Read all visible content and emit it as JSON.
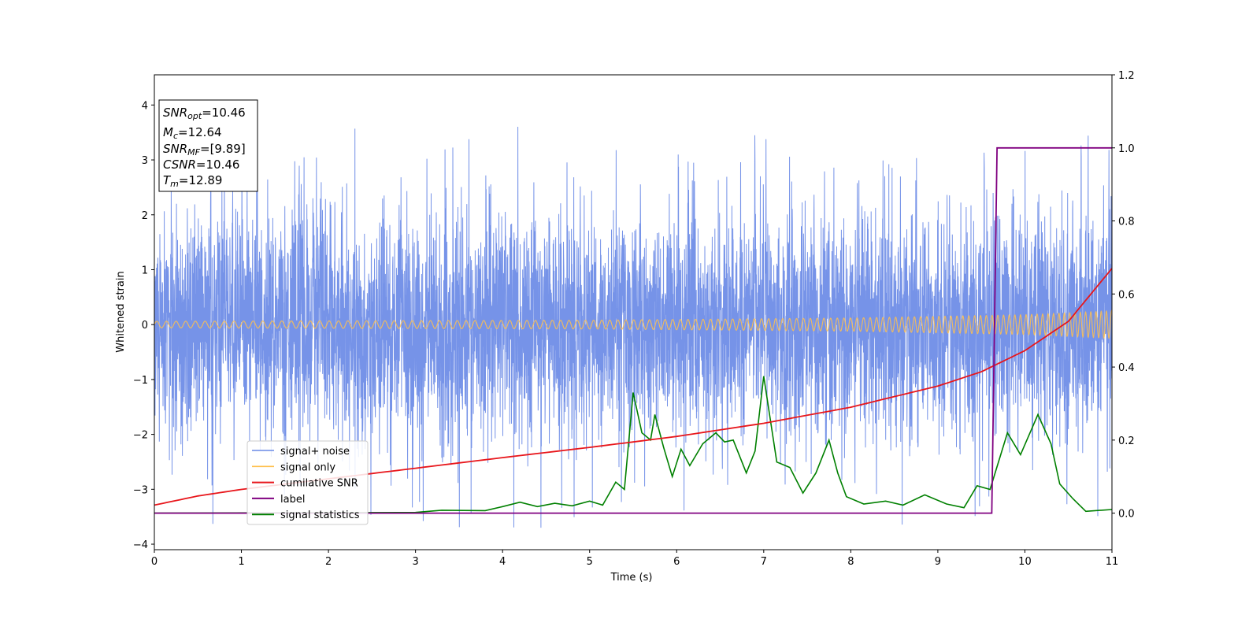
{
  "chart_data": {
    "type": "line",
    "xlabel": "Time (s)",
    "ylabel_left": "Whitened strain",
    "xlim": [
      0,
      11
    ],
    "ylim_left": [
      -4.1,
      4.55
    ],
    "ylim_right": [
      -0.1,
      1.2
    ],
    "x_ticks": [
      "0",
      "1",
      "2",
      "3",
      "4",
      "5",
      "6",
      "7",
      "8",
      "9",
      "10",
      "11"
    ],
    "y_ticks_left": [
      "−4",
      "−3",
      "−2",
      "−1",
      "0",
      "1",
      "2",
      "3",
      "4"
    ],
    "y_ticks_right": [
      "0.0",
      "0.2",
      "0.4",
      "0.6",
      "0.8",
      "1.0",
      "1.2"
    ],
    "grid": false,
    "legend_position": "lower-left",
    "annotation_box": {
      "lines": [
        {
          "symbol": "SNR",
          "sub": "opt",
          "value": "=10.46"
        },
        {
          "symbol": "M",
          "sub": "c",
          "value": "=12.64"
        },
        {
          "symbol": "SNR",
          "sub": "MF",
          "value": "=[9.89]"
        },
        {
          "symbol": "CSNR",
          "sub": "",
          "value": "=10.46"
        },
        {
          "symbol": "T",
          "sub": "m",
          "value": "=12.89"
        }
      ]
    },
    "series": [
      {
        "name": "signal+ noise",
        "axis": "left",
        "color": "#6a8ae6",
        "note": "dense whitened noise, approx amplitude ±1.3 with spikes to ±3.8",
        "envelope": {
          "typical": 1.3,
          "peak": 3.85,
          "min_peak": -3.7
        }
      },
      {
        "name": "signal only",
        "axis": "left",
        "color": "#ffc04d",
        "note": "chirp oscillation whose amplitude grows with time",
        "amplitude": [
          {
            "x": 0,
            "y": 0.06
          },
          {
            "x": 5,
            "y": 0.08
          },
          {
            "x": 8,
            "y": 0.12
          },
          {
            "x": 10,
            "y": 0.18
          },
          {
            "x": 11,
            "y": 0.25
          }
        ]
      },
      {
        "name": "cumilative SNR",
        "axis": "right",
        "color": "#e8161b",
        "points": [
          {
            "x": 0,
            "y": 0.022
          },
          {
            "x": 0.5,
            "y": 0.047
          },
          {
            "x": 1,
            "y": 0.065
          },
          {
            "x": 2,
            "y": 0.094
          },
          {
            "x": 3,
            "y": 0.123
          },
          {
            "x": 4,
            "y": 0.152
          },
          {
            "x": 5,
            "y": 0.18
          },
          {
            "x": 6,
            "y": 0.21
          },
          {
            "x": 7,
            "y": 0.246
          },
          {
            "x": 8,
            "y": 0.29
          },
          {
            "x": 9,
            "y": 0.348
          },
          {
            "x": 9.5,
            "y": 0.387
          },
          {
            "x": 10,
            "y": 0.445
          },
          {
            "x": 10.5,
            "y": 0.525
          },
          {
            "x": 11,
            "y": 0.67
          }
        ]
      },
      {
        "name": "label",
        "axis": "right",
        "color": "#800080",
        "points": [
          {
            "x": 0,
            "y": 0.0
          },
          {
            "x": 9.62,
            "y": 0.0
          },
          {
            "x": 9.68,
            "y": 1.0
          },
          {
            "x": 11,
            "y": 1.0
          }
        ]
      },
      {
        "name": "signal statistics",
        "axis": "right",
        "color": "#008000",
        "points": [
          {
            "x": 0,
            "y": 0.0
          },
          {
            "x": 3.0,
            "y": 0.002
          },
          {
            "x": 3.3,
            "y": 0.008
          },
          {
            "x": 3.8,
            "y": 0.007
          },
          {
            "x": 4.0,
            "y": 0.018
          },
          {
            "x": 4.2,
            "y": 0.03
          },
          {
            "x": 4.4,
            "y": 0.018
          },
          {
            "x": 4.6,
            "y": 0.027
          },
          {
            "x": 4.8,
            "y": 0.02
          },
          {
            "x": 5.0,
            "y": 0.033
          },
          {
            "x": 5.15,
            "y": 0.022
          },
          {
            "x": 5.3,
            "y": 0.085
          },
          {
            "x": 5.4,
            "y": 0.065
          },
          {
            "x": 5.5,
            "y": 0.33
          },
          {
            "x": 5.6,
            "y": 0.22
          },
          {
            "x": 5.7,
            "y": 0.2
          },
          {
            "x": 5.75,
            "y": 0.27
          },
          {
            "x": 5.85,
            "y": 0.18
          },
          {
            "x": 5.95,
            "y": 0.1
          },
          {
            "x": 6.05,
            "y": 0.175
          },
          {
            "x": 6.15,
            "y": 0.13
          },
          {
            "x": 6.3,
            "y": 0.19
          },
          {
            "x": 6.45,
            "y": 0.22
          },
          {
            "x": 6.55,
            "y": 0.195
          },
          {
            "x": 6.65,
            "y": 0.2
          },
          {
            "x": 6.8,
            "y": 0.11
          },
          {
            "x": 6.9,
            "y": 0.17
          },
          {
            "x": 7.0,
            "y": 0.375
          },
          {
            "x": 7.15,
            "y": 0.14
          },
          {
            "x": 7.3,
            "y": 0.125
          },
          {
            "x": 7.45,
            "y": 0.055
          },
          {
            "x": 7.6,
            "y": 0.11
          },
          {
            "x": 7.75,
            "y": 0.2
          },
          {
            "x": 7.85,
            "y": 0.11
          },
          {
            "x": 7.95,
            "y": 0.045
          },
          {
            "x": 8.15,
            "y": 0.025
          },
          {
            "x": 8.4,
            "y": 0.033
          },
          {
            "x": 8.6,
            "y": 0.022
          },
          {
            "x": 8.85,
            "y": 0.05
          },
          {
            "x": 9.1,
            "y": 0.025
          },
          {
            "x": 9.3,
            "y": 0.015
          },
          {
            "x": 9.45,
            "y": 0.075
          },
          {
            "x": 9.6,
            "y": 0.065
          },
          {
            "x": 9.8,
            "y": 0.22
          },
          {
            "x": 9.95,
            "y": 0.16
          },
          {
            "x": 10.15,
            "y": 0.27
          },
          {
            "x": 10.3,
            "y": 0.19
          },
          {
            "x": 10.4,
            "y": 0.08
          },
          {
            "x": 10.55,
            "y": 0.04
          },
          {
            "x": 10.7,
            "y": 0.005
          },
          {
            "x": 11.0,
            "y": 0.01
          }
        ]
      }
    ]
  }
}
